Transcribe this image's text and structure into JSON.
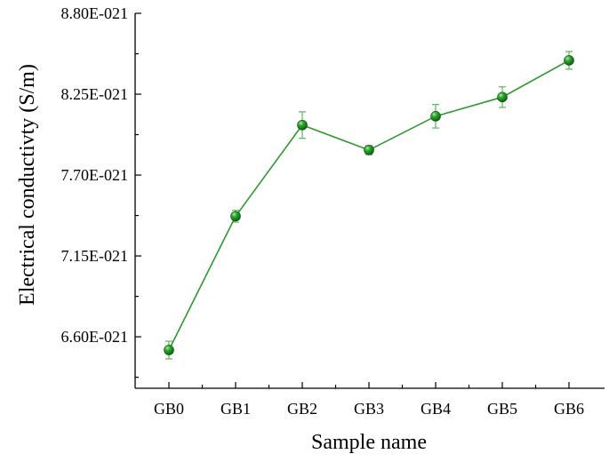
{
  "chart_data": {
    "type": "line",
    "xlabel": "Sample name",
    "ylabel": "Electrical conductivty (S/m)",
    "categories": [
      "GB0",
      "GB1",
      "GB2",
      "GB3",
      "GB4",
      "GB5",
      "GB6"
    ],
    "series": [
      {
        "values": [
          6.51e-21,
          7.42e-21,
          8.04e-21,
          7.87e-21,
          8.1e-21,
          8.23e-21,
          8.48e-21
        ],
        "errors": [
          6e-23,
          4e-23,
          9e-23,
          3e-23,
          8e-23,
          7e-23,
          6e-23
        ],
        "color": "#1e8c1e"
      }
    ],
    "ylim": [
      6.25e-21,
      8.8e-21
    ],
    "yticks": [
      6.6e-21,
      7.15e-21,
      7.7e-21,
      8.25e-21,
      8.8e-21
    ],
    "ytick_labels": [
      "6.60E-021",
      "7.15E-021",
      "7.70E-021",
      "8.25E-021",
      "8.80E-021"
    ],
    "grid": false,
    "legend": "none"
  }
}
